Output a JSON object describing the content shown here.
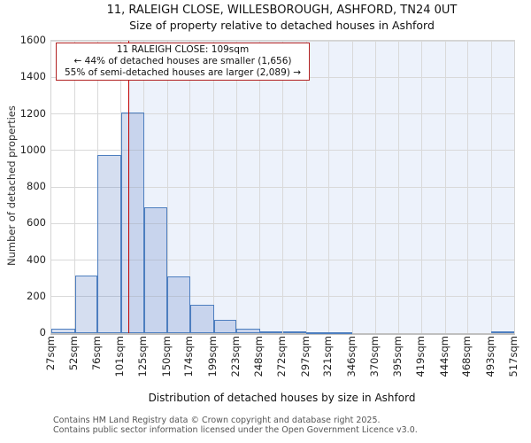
{
  "title": "11, RALEIGH CLOSE, WILLESBOROUGH, ASHFORD, TN24 0UT",
  "subtitle": "Size of property relative to detached houses in Ashford",
  "annotation": {
    "line1": "11 RALEIGH CLOSE: 109sqm",
    "line2": "← 44% of detached houses are smaller (1,656)",
    "line3": "55% of semi-detached houses are larger (2,089) →"
  },
  "chart_data": {
    "type": "bar",
    "title": "11, RALEIGH CLOSE, WILLESBOROUGH, ASHFORD, TN24 0UT",
    "subtitle": "Size of property relative to detached houses in Ashford",
    "xlabel": "Distribution of detached houses by size in Ashford",
    "ylabel": "Number of detached properties",
    "bin_edges_sqm": [
      27,
      52,
      76,
      101,
      125,
      150,
      174,
      199,
      223,
      248,
      272,
      297,
      321,
      346,
      370,
      395,
      419,
      444,
      468,
      493,
      517
    ],
    "x_tick_labels": [
      "27sqm",
      "52sqm",
      "76sqm",
      "101sqm",
      "125sqm",
      "150sqm",
      "174sqm",
      "199sqm",
      "223sqm",
      "248sqm",
      "272sqm",
      "297sqm",
      "321sqm",
      "346sqm",
      "370sqm",
      "395sqm",
      "419sqm",
      "444sqm",
      "468sqm",
      "493sqm",
      "517sqm"
    ],
    "values": [
      25,
      315,
      975,
      1205,
      690,
      310,
      155,
      75,
      25,
      12,
      8,
      6,
      5,
      0,
      0,
      0,
      0,
      0,
      0,
      8
    ],
    "y_ticks": [
      0,
      200,
      400,
      600,
      800,
      1000,
      1200,
      1400,
      1600
    ],
    "ylim": [
      0,
      1600
    ],
    "marker_sqm": 109,
    "grid": true,
    "legend": "none"
  },
  "colors": {
    "bar_fill": "rgba(104,138,201,0.28)",
    "bar_edge": "#4d7ebf",
    "marker_line": "#c00000",
    "annotation_border": "#b22222",
    "shade": "#edf2fb",
    "grid": "#d9d9d9"
  },
  "footer": {
    "line1": "Contains HM Land Registry data © Crown copyright and database right 2025.",
    "line2": "Contains public sector information licensed under the Open Government Licence v3.0."
  }
}
